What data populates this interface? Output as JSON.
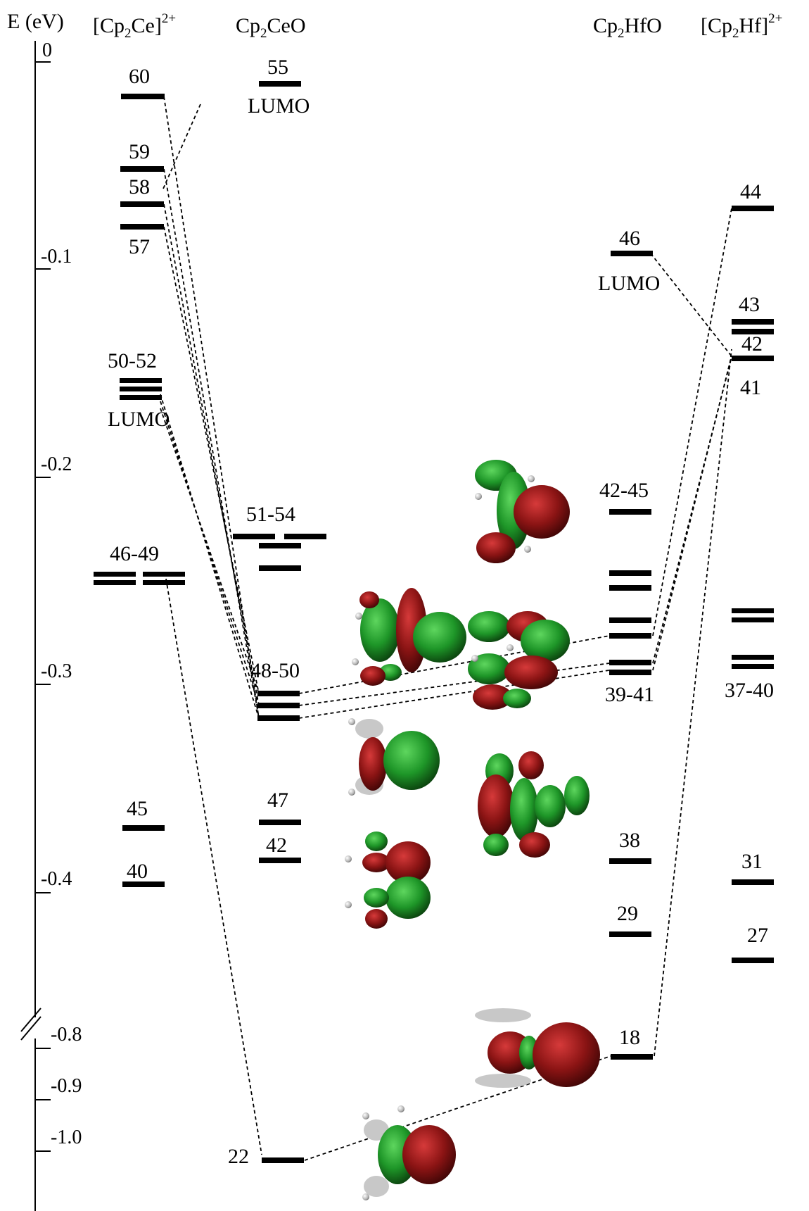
{
  "axis": {
    "label": "E (eV)",
    "ticks": [
      {
        "value": 0,
        "label": "0"
      },
      {
        "value": -0.1,
        "label": "-0.1"
      },
      {
        "value": -0.2,
        "label": "-0.2"
      },
      {
        "value": -0.3,
        "label": "-0.3"
      },
      {
        "value": -0.4,
        "label": "-0.4"
      },
      {
        "value": -0.8,
        "label": "-0.8"
      },
      {
        "value": -0.9,
        "label": "-0.9"
      },
      {
        "value": -1.0,
        "label": "-1.0"
      }
    ],
    "axis_break": true
  },
  "columns": {
    "cp2ce_dication": {
      "main": "[Cp",
      "sub": "2",
      "mid": "Ce]",
      "sup": "2+"
    },
    "cp2ceo": {
      "main": "Cp",
      "sub": "2",
      "mid": "CeO",
      "sup": ""
    },
    "cp2hfo": {
      "main": "Cp",
      "sub": "2",
      "mid": "HfO",
      "sup": ""
    },
    "cp2hf_dication": {
      "main": "[Cp",
      "sub": "2",
      "mid": "Hf]",
      "sup": "2+"
    }
  },
  "labels": {
    "ce60": "60",
    "ce59": "59",
    "ce58": "58",
    "ce57": "57",
    "ce50_52": "50-52",
    "ce_lumo": "LUMO",
    "ce46_49": "46-49",
    "ce45": "45",
    "ce40": "40",
    "ceo55": "55",
    "ceo_lumo": "LUMO",
    "ceo51_54": "51-54",
    "ceo48_50": "48-50",
    "ceo47": "47",
    "ceo42": "42",
    "ceo22": "22",
    "hfo46": "46",
    "hfo_lumo": "LUMO",
    "hfo42_45": "42-45",
    "hfo39_41": "39-41",
    "hfo38": "38",
    "hfo29": "29",
    "hfo18": "18",
    "hf44": "44",
    "hf43": "43",
    "hf42": "42",
    "hf41": "41",
    "hf37_40": "37-40",
    "hf31": "31",
    "hf27": "27"
  },
  "colors": {
    "lobe_red": "#8b1414",
    "lobe_green": "#1e9628",
    "atom_grey": "#b4b4b4",
    "line": "#000000"
  },
  "orbital_icons": [
    "orbital-plot-icon",
    "orbital-plot-icon",
    "orbital-plot-icon",
    "orbital-plot-icon",
    "orbital-plot-icon",
    "orbital-plot-icon",
    "orbital-plot-icon",
    "orbital-plot-icon"
  ]
}
